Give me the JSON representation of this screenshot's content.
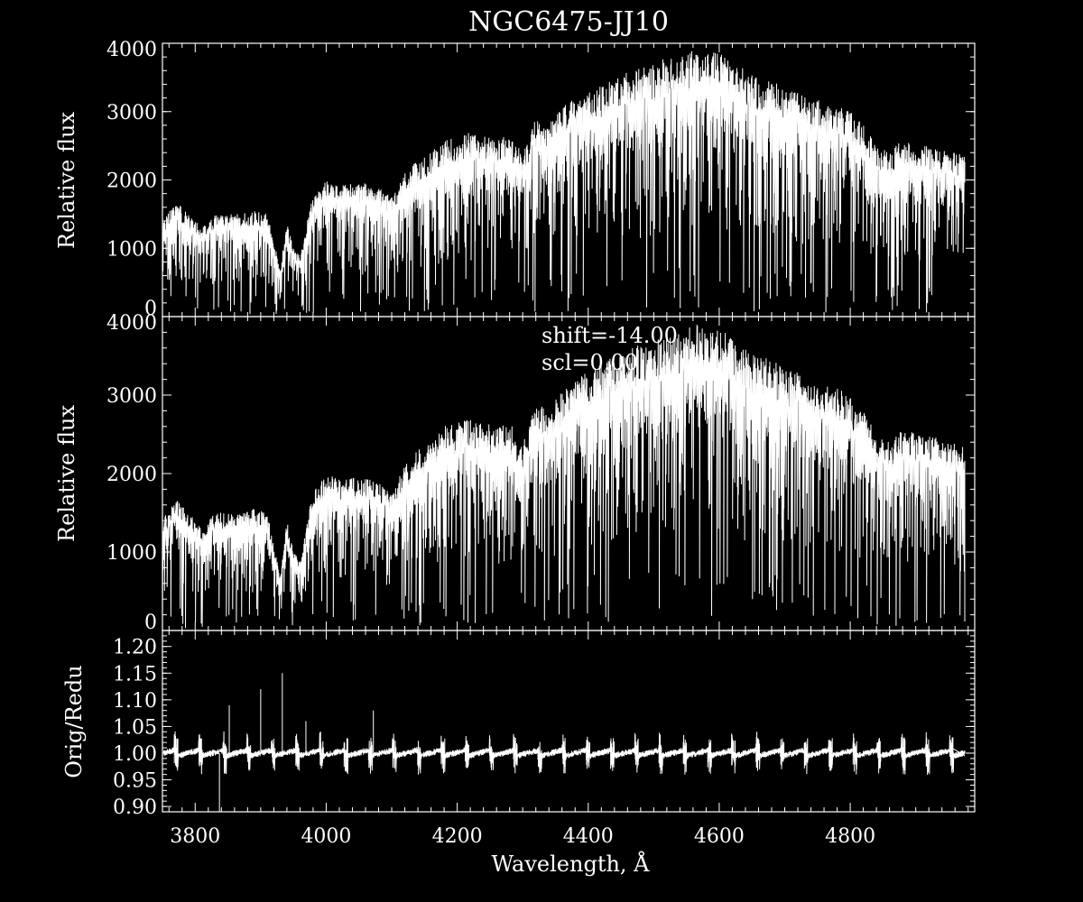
{
  "title": "NGC6475-JJ10",
  "chart_data": [
    {
      "type": "line",
      "panel": "top",
      "ylabel": "Relative flux",
      "xlim": [
        3750,
        4990
      ],
      "ylim": [
        0,
        4000
      ],
      "yticks": [
        0,
        1000,
        2000,
        3000,
        4000
      ],
      "yticklabels": [
        "0",
        "1000",
        "2000",
        "3000",
        "4000"
      ],
      "envelope": {
        "x": [
          3750,
          3770,
          3790,
          3810,
          3830,
          3850,
          3870,
          3890,
          3910,
          3920,
          3930,
          3940,
          3950,
          3960,
          3980,
          4000,
          4020,
          4040,
          4060,
          4080,
          4100,
          4120,
          4140,
          4160,
          4180,
          4200,
          4220,
          4240,
          4260,
          4280,
          4300,
          4320,
          4340,
          4360,
          4380,
          4400,
          4420,
          4440,
          4460,
          4480,
          4500,
          4520,
          4540,
          4560,
          4580,
          4600,
          4620,
          4640,
          4660,
          4680,
          4700,
          4720,
          4740,
          4760,
          4780,
          4800,
          4820,
          4840,
          4860,
          4880,
          4900,
          4920,
          4940,
          4960,
          4975
        ],
        "y": [
          1400,
          1700,
          1500,
          1300,
          1500,
          1500,
          1500,
          1550,
          1500,
          1100,
          700,
          1400,
          1000,
          900,
          1800,
          2000,
          1950,
          1950,
          1950,
          1900,
          1750,
          2100,
          2300,
          2400,
          2600,
          2650,
          2700,
          2650,
          2600,
          2650,
          2400,
          2900,
          2800,
          3100,
          3200,
          3300,
          3400,
          3500,
          3600,
          3650,
          3700,
          3800,
          3800,
          3900,
          3900,
          3850,
          3750,
          3600,
          3500,
          3450,
          3350,
          3300,
          3200,
          3150,
          3100,
          3000,
          2800,
          2500,
          2400,
          2600,
          2500,
          2500,
          2450,
          2400,
          2350
        ]
      }
    },
    {
      "type": "line",
      "panel": "middle",
      "ylabel": "Relative flux",
      "xlim": [
        3750,
        4990
      ],
      "ylim": [
        0,
        4000
      ],
      "yticks": [
        0,
        1000,
        2000,
        3000,
        4000
      ],
      "yticklabels": [
        "0",
        "1000",
        "2000",
        "3000",
        "4000"
      ],
      "annotations": [
        "shift=-14.00",
        "scl=0.00"
      ],
      "envelope": {
        "x": [
          3750,
          3770,
          3790,
          3810,
          3830,
          3850,
          3870,
          3890,
          3910,
          3920,
          3930,
          3940,
          3950,
          3960,
          3980,
          4000,
          4020,
          4040,
          4060,
          4080,
          4100,
          4120,
          4140,
          4160,
          4180,
          4200,
          4220,
          4240,
          4260,
          4280,
          4300,
          4320,
          4340,
          4360,
          4380,
          4400,
          4420,
          4440,
          4460,
          4480,
          4500,
          4520,
          4540,
          4560,
          4580,
          4600,
          4620,
          4640,
          4660,
          4680,
          4700,
          4720,
          4740,
          4760,
          4780,
          4800,
          4820,
          4840,
          4860,
          4880,
          4900,
          4920,
          4940,
          4960,
          4975
        ],
        "y": [
          1400,
          1700,
          1500,
          1300,
          1500,
          1500,
          1500,
          1550,
          1500,
          1100,
          700,
          1400,
          1000,
          900,
          1800,
          2000,
          1950,
          1950,
          1950,
          1900,
          1750,
          2100,
          2300,
          2400,
          2600,
          2650,
          2700,
          2650,
          2600,
          2650,
          2400,
          2900,
          2800,
          3100,
          3200,
          3300,
          3400,
          3500,
          3600,
          3650,
          3700,
          3800,
          3800,
          3900,
          3900,
          3850,
          3750,
          3600,
          3500,
          3450,
          3350,
          3300,
          3200,
          3150,
          3100,
          3000,
          2800,
          2500,
          2400,
          2600,
          2500,
          2500,
          2450,
          2400,
          2350
        ]
      }
    },
    {
      "type": "line",
      "panel": "bottom",
      "ylabel": "Orig/Redu",
      "xlabel": "Wavelength, Å",
      "xlim": [
        3750,
        4990
      ],
      "ylim": [
        0.89,
        1.23
      ],
      "xticks": [
        3800,
        4000,
        4200,
        4400,
        4600,
        4800
      ],
      "xticklabels": [
        "3800",
        "4000",
        "4200",
        "4400",
        "4600",
        "4800"
      ],
      "yticks": [
        0.9,
        0.95,
        1.0,
        1.05,
        1.1,
        1.15,
        1.2
      ],
      "yticklabels": [
        "0.90",
        "0.95",
        "1.00",
        "1.05",
        "1.10",
        "1.15",
        "1.20"
      ],
      "baseline": 1.0,
      "spikes": [
        {
          "x": 3837,
          "y": 0.86
        },
        {
          "x": 3852,
          "y": 1.09
        },
        {
          "x": 3900,
          "y": 1.12
        },
        {
          "x": 3933,
          "y": 1.15
        },
        {
          "x": 3969,
          "y": 1.06
        },
        {
          "x": 4072,
          "y": 1.08
        }
      ]
    }
  ]
}
